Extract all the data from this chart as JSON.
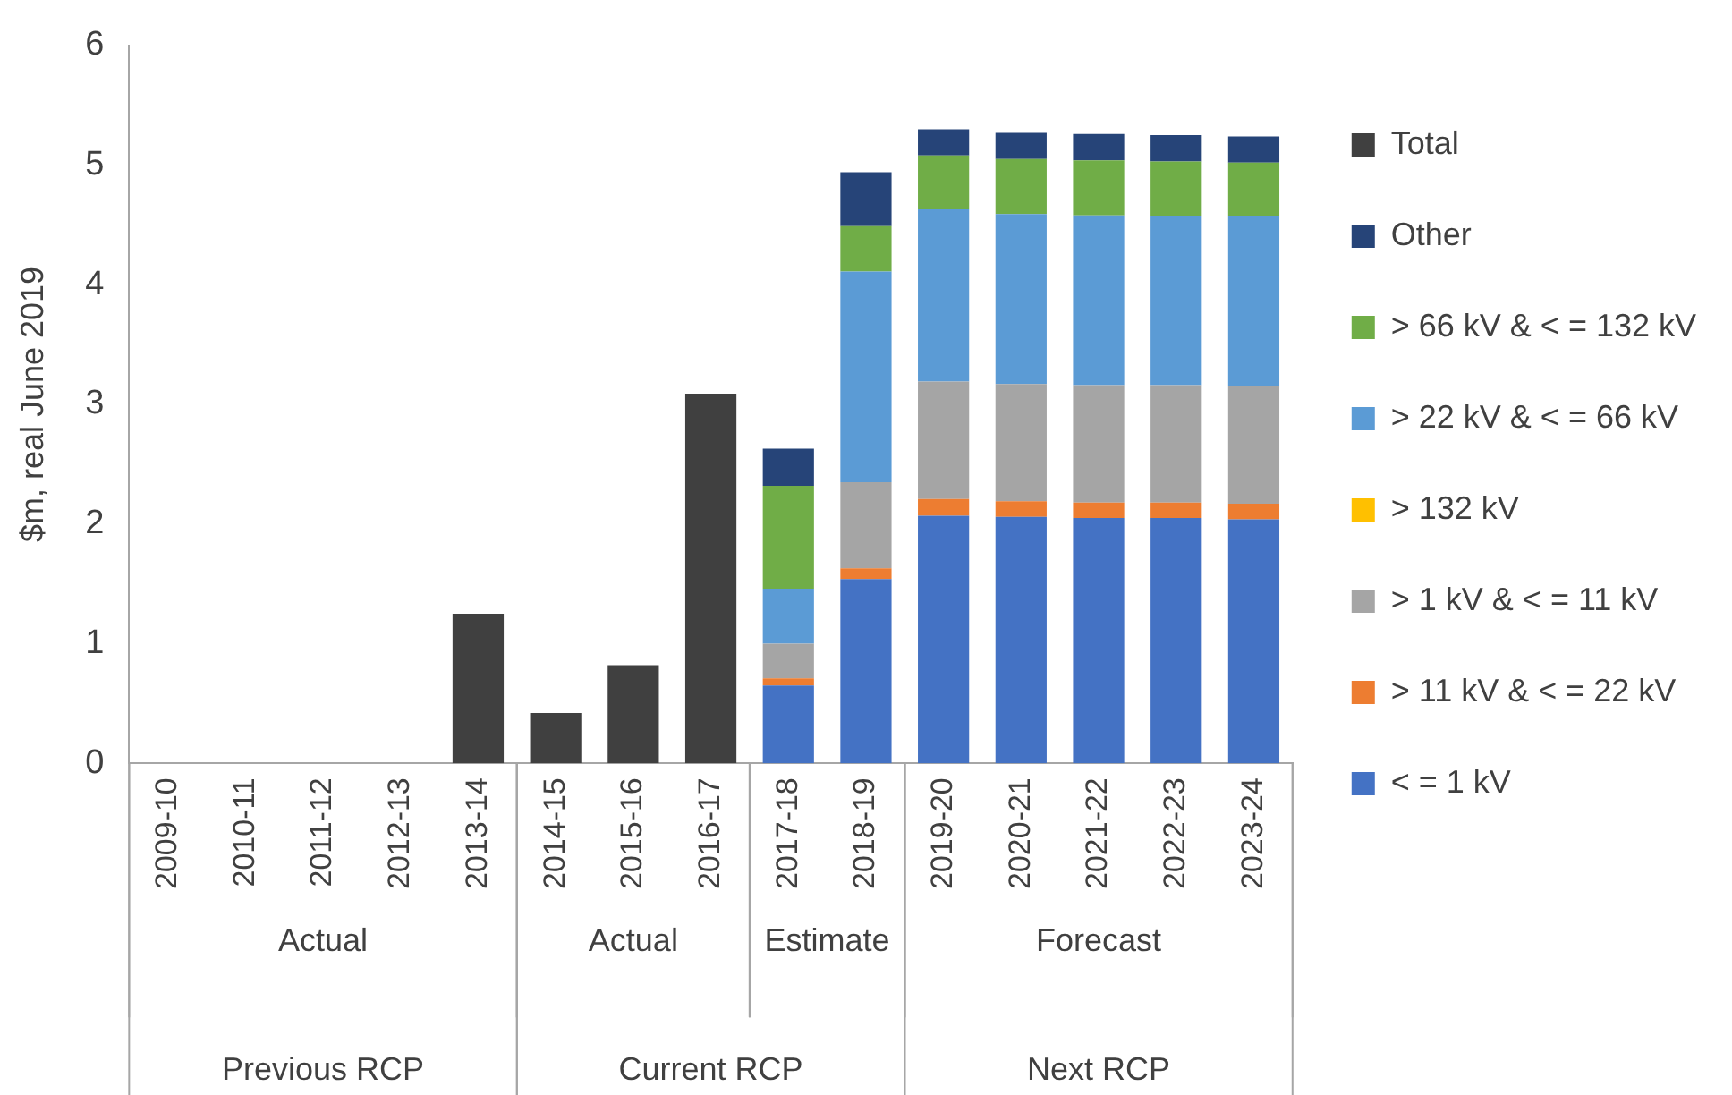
{
  "chart_data": {
    "type": "bar",
    "stacked": true,
    "ylabel": "$m, real June 2019",
    "categories": [
      "2009-10",
      "2010-11",
      "2011-12",
      "2012-13",
      "2013-14",
      "2014-15",
      "2015-16",
      "2016-17",
      "2017-18",
      "2018-19",
      "2019-20",
      "2020-21",
      "2021-22",
      "2022-23",
      "2023-24"
    ],
    "series": [
      {
        "name": "< = 1 kV",
        "color": "#4472c4",
        "values": [
          null,
          null,
          null,
          null,
          null,
          null,
          null,
          null,
          0.65,
          1.54,
          2.07,
          2.06,
          2.05,
          2.05,
          2.04
        ]
      },
      {
        "name": "> 11 kV & < = 22 kV",
        "color": "#ed7d31",
        "values": [
          null,
          null,
          null,
          null,
          null,
          null,
          null,
          null,
          0.06,
          0.09,
          0.14,
          0.13,
          0.13,
          0.13,
          0.13
        ]
      },
      {
        "name": "> 1 kV & < = 11 kV",
        "color": "#a5a5a5",
        "values": [
          null,
          null,
          null,
          null,
          null,
          null,
          null,
          null,
          0.29,
          0.72,
          0.98,
          0.98,
          0.98,
          0.98,
          0.98
        ]
      },
      {
        "name": "> 132 kV",
        "color": "#ffc000",
        "values": [
          null,
          null,
          null,
          null,
          null,
          null,
          null,
          null,
          0,
          0,
          0,
          0,
          0,
          0,
          0
        ]
      },
      {
        "name": "> 22 kV & < = 66 kV",
        "color": "#5b9bd5",
        "values": [
          null,
          null,
          null,
          null,
          null,
          null,
          null,
          null,
          0.46,
          1.76,
          1.44,
          1.42,
          1.42,
          1.41,
          1.42
        ]
      },
      {
        "name": "> 66 kV & < = 132 kV",
        "color": "#70ad47",
        "values": [
          null,
          null,
          null,
          null,
          null,
          null,
          null,
          null,
          0.86,
          0.38,
          0.45,
          0.46,
          0.46,
          0.46,
          0.45
        ]
      },
      {
        "name": "Other",
        "color": "#264478",
        "values": [
          null,
          null,
          null,
          null,
          null,
          null,
          null,
          null,
          0.31,
          0.45,
          0.22,
          0.22,
          0.22,
          0.22,
          0.22
        ]
      },
      {
        "name": "Total",
        "color": "#404040",
        "values": [
          null,
          null,
          null,
          null,
          1.25,
          0.42,
          0.82,
          3.09,
          null,
          null,
          null,
          null,
          null,
          null,
          null
        ]
      }
    ],
    "ylim": [
      0,
      6
    ],
    "yticks": [
      0,
      1,
      2,
      3,
      4,
      5,
      6
    ],
    "grid": false,
    "legend": "right",
    "annotations": [
      "Actual",
      "Actual",
      "Estimate",
      "Forecast",
      "Previous RCP",
      "Current RCP",
      "Next RCP"
    ]
  }
}
